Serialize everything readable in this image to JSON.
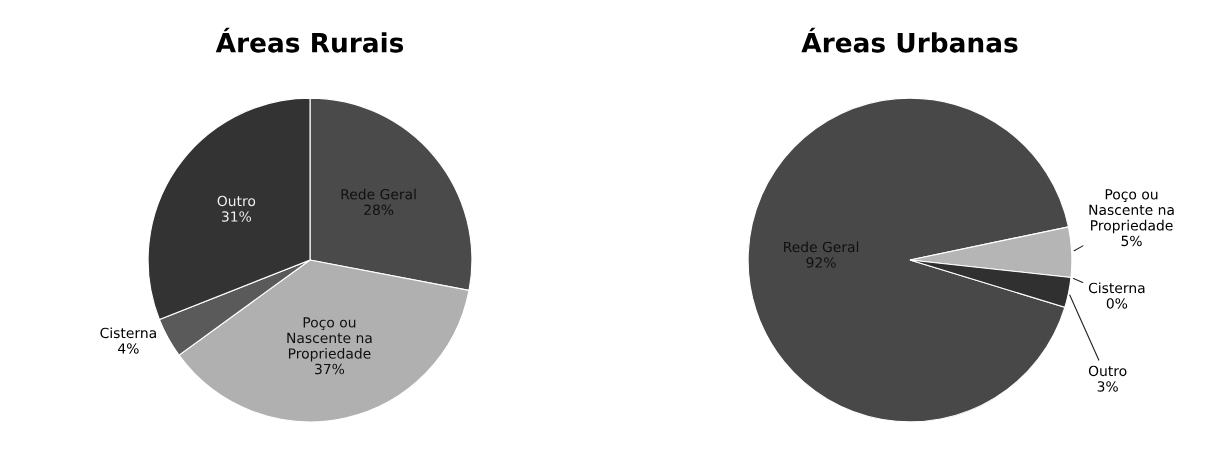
{
  "chart_data": [
    {
      "type": "pie",
      "title": "Áreas Rurais",
      "categories": [
        "Rede Geral",
        "Poço ou Nascente na Propriedade",
        "Cisterna",
        "Outro"
      ],
      "values": [
        28,
        37,
        4,
        31
      ],
      "value_labels": [
        "28%",
        "37%",
        "4%",
        "31%"
      ],
      "colors": [
        "#4a4a4a",
        "#b0b0b0",
        "#5a5a5a",
        "#333333"
      ]
    },
    {
      "type": "pie",
      "title": "Áreas Urbanas",
      "categories": [
        "Rede Geral",
        "Poço ou Nascente na Propriedade",
        "Cisterna",
        "Outro"
      ],
      "values": [
        92,
        5,
        0,
        3
      ],
      "value_labels": [
        "92%",
        "5%",
        "0%",
        "3%"
      ],
      "colors": [
        "#484848",
        "#b5b5b5",
        "#606060",
        "#303030"
      ]
    }
  ]
}
